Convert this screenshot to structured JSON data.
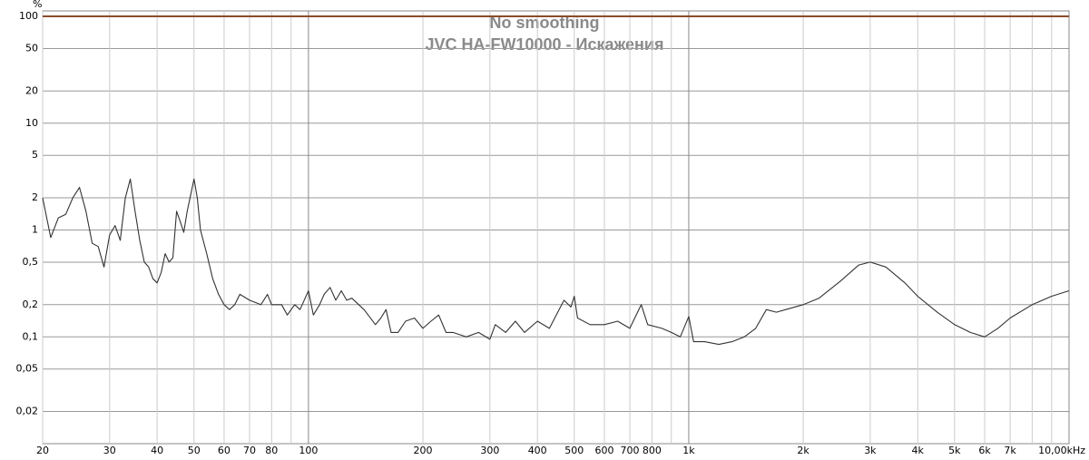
{
  "chart_data": {
    "type": "line",
    "title": "No smoothing",
    "subtitle": "JVC HA-FW10000 - Искажения",
    "y_unit": "%",
    "log_x": true,
    "log_y": true,
    "grid": true,
    "xlim": [
      20,
      10000
    ],
    "ylim": [
      0.01,
      100
    ],
    "xticks": [
      20,
      30,
      40,
      50,
      60,
      70,
      80,
      100,
      200,
      300,
      400,
      500,
      600,
      700,
      800,
      {
        "value": 1000,
        "label": "1k"
      },
      {
        "value": 2000,
        "label": "2k"
      },
      {
        "value": 3000,
        "label": "3k"
      },
      {
        "value": 4000,
        "label": "4k"
      },
      {
        "value": 5000,
        "label": "5k"
      },
      {
        "value": 6000,
        "label": "6k"
      },
      {
        "value": 7000,
        "label": "7k"
      },
      {
        "value": 10000,
        "label": "10,00kHz"
      }
    ],
    "xminor_ticks": [
      90,
      900,
      8000,
      9000
    ],
    "yticks": [
      100,
      50,
      20,
      10,
      5,
      2,
      1,
      {
        "value": 0.5,
        "label": "0,5"
      },
      {
        "value": 0.2,
        "label": "0,2"
      },
      {
        "value": 0.1,
        "label": "0,1"
      },
      {
        "value": 0.05,
        "label": "0,05"
      },
      {
        "value": 0.02,
        "label": "0,02"
      }
    ],
    "series": [
      {
        "color": "#8b4a2b",
        "x": [
          20,
          10000
        ],
        "values": [
          100,
          100
        ]
      },
      {
        "color": "#333333",
        "x": [
          20,
          21,
          22,
          23,
          24,
          25,
          26,
          27,
          28,
          29,
          30,
          31,
          32,
          33,
          34,
          35,
          36,
          37,
          38,
          39,
          40,
          41,
          42,
          43,
          44,
          45,
          46,
          47,
          48,
          50,
          51,
          52,
          54,
          56,
          58,
          60,
          62,
          64,
          66,
          70,
          75,
          78,
          80,
          85,
          88,
          92,
          95,
          100,
          103,
          107,
          110,
          114,
          118,
          122,
          126,
          130,
          140,
          150,
          155,
          160,
          165,
          172,
          180,
          190,
          200,
          210,
          220,
          230,
          240,
          260,
          280,
          300,
          310,
          330,
          350,
          370,
          400,
          430,
          470,
          490,
          500,
          510,
          550,
          600,
          650,
          700,
          750,
          780,
          850,
          900,
          950,
          1000,
          1030,
          1100,
          1200,
          1300,
          1400,
          1500,
          1600,
          1700,
          1800,
          2000,
          2200,
          2500,
          2800,
          3000,
          3300,
          3700,
          4000,
          4500,
          5000,
          5500,
          6000,
          6500,
          7000,
          8000,
          9000,
          10000
        ],
        "values": [
          2.0,
          0.85,
          1.3,
          1.4,
          2.0,
          2.5,
          1.5,
          0.75,
          0.7,
          0.45,
          0.9,
          1.1,
          0.8,
          2.0,
          3.0,
          1.5,
          0.8,
          0.5,
          0.45,
          0.35,
          0.32,
          0.4,
          0.6,
          0.5,
          0.55,
          1.5,
          1.2,
          0.95,
          1.5,
          3.0,
          2.0,
          1.0,
          0.6,
          0.35,
          0.25,
          0.2,
          0.18,
          0.2,
          0.25,
          0.22,
          0.2,
          0.25,
          0.2,
          0.2,
          0.16,
          0.2,
          0.18,
          0.27,
          0.16,
          0.2,
          0.25,
          0.29,
          0.22,
          0.27,
          0.22,
          0.23,
          0.18,
          0.13,
          0.15,
          0.18,
          0.11,
          0.11,
          0.14,
          0.15,
          0.12,
          0.14,
          0.16,
          0.11,
          0.11,
          0.1,
          0.11,
          0.095,
          0.13,
          0.11,
          0.14,
          0.11,
          0.14,
          0.12,
          0.22,
          0.19,
          0.24,
          0.15,
          0.13,
          0.13,
          0.14,
          0.12,
          0.2,
          0.13,
          0.12,
          0.11,
          0.1,
          0.155,
          0.09,
          0.09,
          0.085,
          0.09,
          0.1,
          0.12,
          0.18,
          0.17,
          0.18,
          0.2,
          0.23,
          0.33,
          0.47,
          0.5,
          0.45,
          0.32,
          0.24,
          0.17,
          0.13,
          0.11,
          0.1,
          0.12,
          0.15,
          0.2,
          0.24,
          0.27
        ]
      }
    ]
  }
}
